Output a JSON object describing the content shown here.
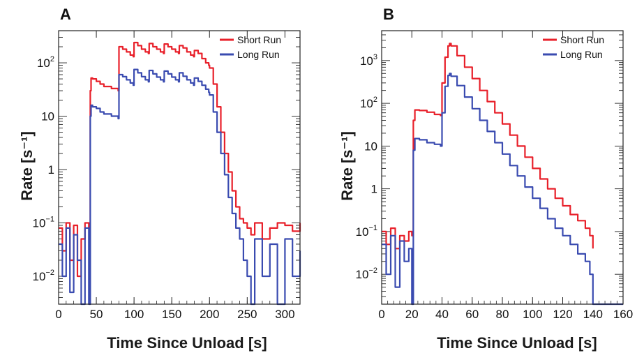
{
  "chart_data": [
    {
      "type": "line",
      "panel_label": "A",
      "xlabel": "Time Since Unload [s]",
      "ylabel": "Rate [s⁻¹]",
      "xlim": [
        0,
        320
      ],
      "ylim": [
        0.003,
        400
      ],
      "yscale": "log",
      "x_ticks": [
        0,
        50,
        100,
        150,
        200,
        250,
        300
      ],
      "y_ticks": [
        {
          "value": 0.01,
          "base": "10",
          "exp": "−2"
        },
        {
          "value": 0.1,
          "base": "10",
          "exp": "−1"
        },
        {
          "value": 1,
          "base": "1",
          "exp": ""
        },
        {
          "value": 10,
          "base": "10",
          "exp": ""
        },
        {
          "value": 100,
          "base": "10",
          "exp": "2"
        }
      ],
      "legend_position": "top-right",
      "series": [
        {
          "name": "Short Run",
          "color": "#e8202a",
          "x": [
            0,
            5,
            10,
            15,
            20,
            25,
            30,
            35,
            40,
            42,
            43,
            45,
            50,
            55,
            60,
            70,
            79,
            80,
            85,
            90,
            95,
            99,
            100,
            105,
            110,
            115,
            119,
            120,
            125,
            130,
            135,
            139,
            140,
            145,
            150,
            155,
            159,
            160,
            165,
            170,
            175,
            179,
            180,
            185,
            190,
            195,
            199,
            200,
            205,
            210,
            215,
            220,
            225,
            230,
            235,
            240,
            245,
            250,
            255,
            260,
            270,
            280,
            290,
            300,
            310,
            320
          ],
          "values": [
            0.08,
            0.03,
            0.1,
            0.02,
            0.09,
            0.01,
            0.05,
            0.1,
            0.08,
            30,
            52,
            50,
            45,
            40,
            36,
            33,
            30,
            200,
            180,
            160,
            140,
            130,
            240,
            210,
            180,
            160,
            150,
            230,
            200,
            180,
            160,
            150,
            225,
            200,
            180,
            160,
            150,
            210,
            190,
            160,
            140,
            130,
            170,
            150,
            120,
            100,
            90,
            80,
            40,
            15,
            5,
            2,
            0.9,
            0.4,
            0.2,
            0.12,
            0.1,
            0.08,
            0.06,
            0.1,
            0.05,
            0.08,
            0.1,
            0.09,
            0.07,
            0.1
          ]
        },
        {
          "name": "Long Run",
          "color": "#3a4bb0",
          "x": [
            0,
            5,
            10,
            15,
            20,
            25,
            30,
            35,
            40,
            42,
            43,
            45,
            50,
            55,
            60,
            70,
            79,
            80,
            85,
            90,
            95,
            99,
            100,
            105,
            110,
            115,
            119,
            120,
            125,
            130,
            135,
            139,
            140,
            145,
            150,
            155,
            159,
            160,
            165,
            170,
            175,
            179,
            180,
            185,
            190,
            195,
            199,
            200,
            205,
            210,
            215,
            220,
            225,
            230,
            235,
            240,
            245,
            250,
            255,
            260,
            270,
            280,
            290,
            300,
            310,
            320
          ],
          "values": [
            0.04,
            0.01,
            0.08,
            0.005,
            0.06,
            0.02,
            0.003,
            0.08,
            0.003,
            10,
            16,
            15,
            14,
            12,
            11,
            10,
            9,
            60,
            55,
            48,
            42,
            38,
            75,
            65,
            55,
            48,
            44,
            72,
            62,
            54,
            48,
            44,
            70,
            62,
            54,
            48,
            44,
            65,
            56,
            48,
            42,
            38,
            52,
            45,
            38,
            32,
            28,
            25,
            12,
            5,
            2,
            0.8,
            0.3,
            0.15,
            0.08,
            0.05,
            0.02,
            0.01,
            0.003,
            0.05,
            0.01,
            0.04,
            0.003,
            0.05,
            0.01,
            0.03
          ]
        }
      ]
    },
    {
      "type": "line",
      "panel_label": "B",
      "xlabel": "Time Since Unload [s]",
      "ylabel": "Rate [s⁻¹]",
      "xlim": [
        0,
        160
      ],
      "ylim": [
        0.002,
        5000
      ],
      "yscale": "log",
      "x_ticks": [
        0,
        20,
        40,
        60,
        80,
        100,
        120,
        140,
        160
      ],
      "y_ticks": [
        {
          "value": 0.01,
          "base": "10",
          "exp": "−2"
        },
        {
          "value": 0.1,
          "base": "10",
          "exp": "−1"
        },
        {
          "value": 1,
          "base": "1",
          "exp": ""
        },
        {
          "value": 10,
          "base": "10",
          "exp": ""
        },
        {
          "value": 100,
          "base": "10",
          "exp": "2"
        },
        {
          "value": 1000,
          "base": "10",
          "exp": "3"
        }
      ],
      "legend_position": "top-right",
      "series": [
        {
          "name": "Short Run",
          "color": "#e8202a",
          "x": [
            0,
            3,
            6,
            9,
            12,
            15,
            18,
            20,
            21,
            22,
            25,
            30,
            35,
            39,
            40,
            42,
            44,
            45,
            46,
            50,
            55,
            60,
            65,
            70,
            75,
            80,
            85,
            90,
            95,
            100,
            105,
            110,
            115,
            120,
            125,
            130,
            135,
            138,
            140
          ],
          "values": [
            0.1,
            0.05,
            0.12,
            0.04,
            0.08,
            0.06,
            0.1,
            0.08,
            40,
            70,
            68,
            62,
            55,
            52,
            300,
            1200,
            2200,
            2500,
            2200,
            1300,
            700,
            380,
            200,
            110,
            60,
            33,
            18,
            10,
            5.5,
            3,
            1.7,
            1,
            0.6,
            0.4,
            0.25,
            0.18,
            0.12,
            0.08,
            0.04
          ]
        },
        {
          "name": "Long Run",
          "color": "#3a4bb0",
          "x": [
            0,
            3,
            6,
            9,
            12,
            15,
            18,
            20,
            21,
            22,
            25,
            30,
            35,
            39,
            40,
            42,
            44,
            45,
            46,
            50,
            55,
            60,
            65,
            70,
            75,
            80,
            85,
            90,
            95,
            100,
            105,
            110,
            115,
            120,
            125,
            130,
            135,
            138,
            140,
            150,
            160
          ],
          "values": [
            0.05,
            0.01,
            0.08,
            0.005,
            0.06,
            0.02,
            0.04,
            0.002,
            8,
            15,
            14,
            12,
            11,
            10,
            60,
            250,
            450,
            500,
            430,
            260,
            140,
            75,
            40,
            22,
            12,
            6.5,
            3.5,
            2,
            1.1,
            0.6,
            0.35,
            0.2,
            0.12,
            0.08,
            0.05,
            0.03,
            0.02,
            0.01,
            0.002,
            0.002,
            0.002
          ]
        }
      ]
    }
  ]
}
